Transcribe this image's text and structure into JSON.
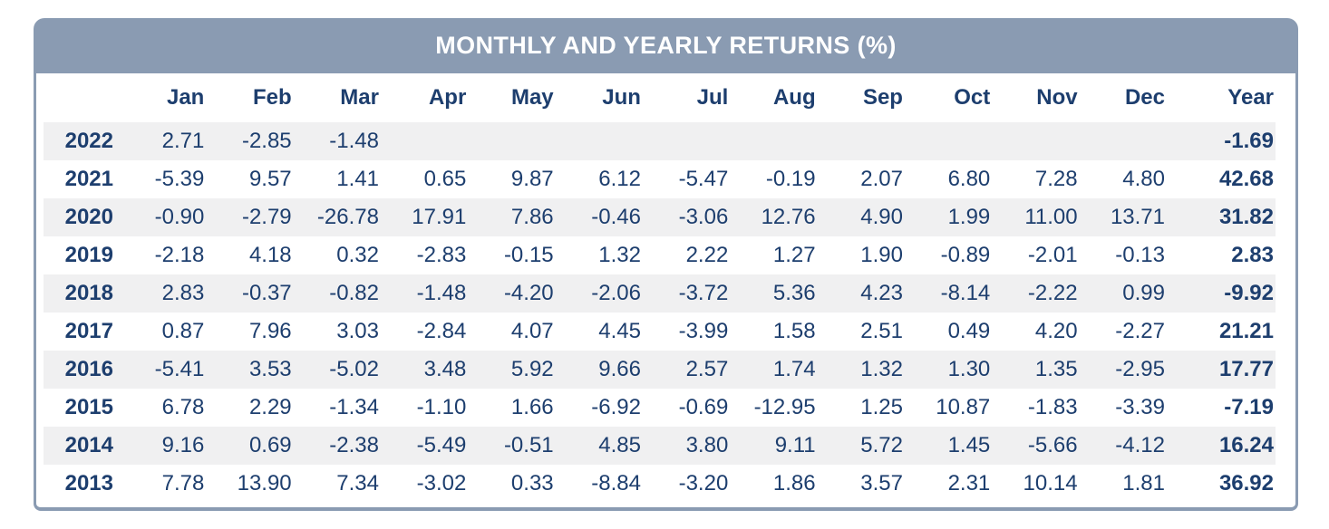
{
  "title": "MONTHLY AND YEARLY RETURNS (%)",
  "chart_data": {
    "type": "table",
    "title": "MONTHLY AND YEARLY RETURNS (%)",
    "columns": [
      "Jan",
      "Feb",
      "Mar",
      "Apr",
      "May",
      "Jun",
      "Jul",
      "Aug",
      "Sep",
      "Oct",
      "Nov",
      "Dec"
    ],
    "year_column_label": "Year",
    "rows": [
      {
        "year": "2022",
        "months": [
          "2.71",
          "-2.85",
          "-1.48",
          "",
          "",
          "",
          "",
          "",
          "",
          "",
          "",
          ""
        ],
        "year_total": "-1.69"
      },
      {
        "year": "2021",
        "months": [
          "-5.39",
          "9.57",
          "1.41",
          "0.65",
          "9.87",
          "6.12",
          "-5.47",
          "-0.19",
          "2.07",
          "6.80",
          "7.28",
          "4.80"
        ],
        "year_total": "42.68"
      },
      {
        "year": "2020",
        "months": [
          "-0.90",
          "-2.79",
          "-26.78",
          "17.91",
          "7.86",
          "-0.46",
          "-3.06",
          "12.76",
          "4.90",
          "1.99",
          "11.00",
          "13.71"
        ],
        "year_total": "31.82"
      },
      {
        "year": "2019",
        "months": [
          "-2.18",
          "4.18",
          "0.32",
          "-2.83",
          "-0.15",
          "1.32",
          "2.22",
          "1.27",
          "1.90",
          "-0.89",
          "-2.01",
          "-0.13"
        ],
        "year_total": "2.83"
      },
      {
        "year": "2018",
        "months": [
          "2.83",
          "-0.37",
          "-0.82",
          "-1.48",
          "-4.20",
          "-2.06",
          "-3.72",
          "5.36",
          "4.23",
          "-8.14",
          "-2.22",
          "0.99"
        ],
        "year_total": "-9.92"
      },
      {
        "year": "2017",
        "months": [
          "0.87",
          "7.96",
          "3.03",
          "-2.84",
          "4.07",
          "4.45",
          "-3.99",
          "1.58",
          "2.51",
          "0.49",
          "4.20",
          "-2.27"
        ],
        "year_total": "21.21"
      },
      {
        "year": "2016",
        "months": [
          "-5.41",
          "3.53",
          "-5.02",
          "3.48",
          "5.92",
          "9.66",
          "2.57",
          "1.74",
          "1.32",
          "1.30",
          "1.35",
          "-2.95"
        ],
        "year_total": "17.77"
      },
      {
        "year": "2015",
        "months": [
          "6.78",
          "2.29",
          "-1.34",
          "-1.10",
          "1.66",
          "-6.92",
          "-0.69",
          "-12.95",
          "1.25",
          "10.87",
          "-1.83",
          "-3.39"
        ],
        "year_total": "-7.19"
      },
      {
        "year": "2014",
        "months": [
          "9.16",
          "0.69",
          "-2.38",
          "-5.49",
          "-0.51",
          "4.85",
          "3.80",
          "9.11",
          "5.72",
          "1.45",
          "-5.66",
          "-4.12"
        ],
        "year_total": "16.24"
      },
      {
        "year": "2013",
        "months": [
          "7.78",
          "13.90",
          "7.34",
          "-3.02",
          "0.33",
          "-8.84",
          "-3.20",
          "1.86",
          "3.57",
          "2.31",
          "10.14",
          "1.81"
        ],
        "year_total": "36.92"
      }
    ]
  },
  "colors": {
    "header_bar": "#8a9bb2",
    "border": "#8a9bb2",
    "text_navy": "#1d3e6e",
    "row_stripe": "#f0f0f1",
    "title_text": "#ffffff"
  }
}
